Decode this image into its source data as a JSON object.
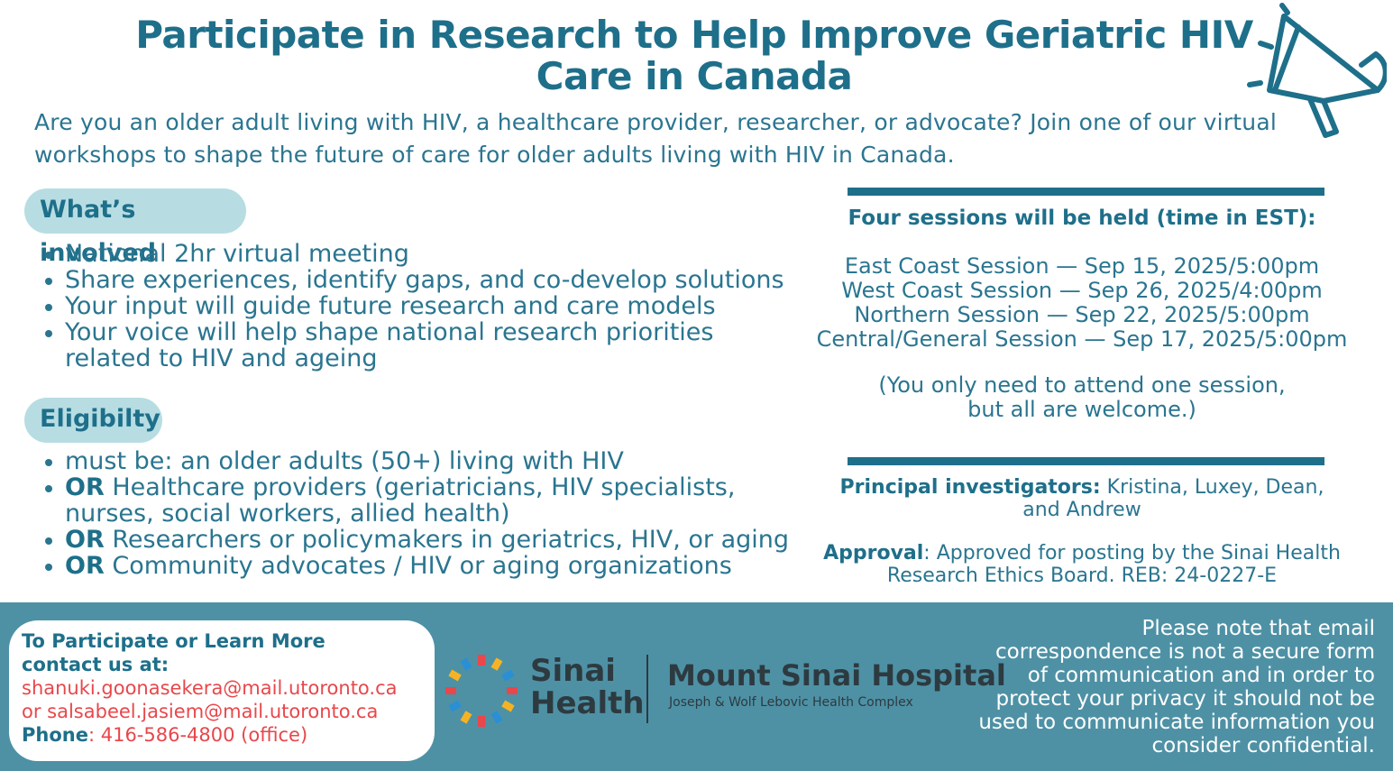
{
  "title": "Participate in Research to Help Improve Geriatric HIV Care in Canada",
  "intro": "Are you an older adult living with HIV, a healthcare provider, researcher, or advocate? Join one of our virtual workshops to shape the future of care for older adults living with HIV in Canada.",
  "involved": {
    "heading": "What’s involved",
    "items": [
      "National 2hr virtual meeting",
      "Share experiences, identify gaps, and co-develop solutions",
      "Your input will guide future research and care models",
      "Your voice will help shape national research priorities related to HIV and ageing"
    ]
  },
  "eligibility": {
    "heading": "Eligibilty",
    "first": "must be: an older adults (50+) living with HIV",
    "or_word": "OR",
    "items": [
      "Healthcare providers (geriatricians, HIV specialists, nurses, social workers, allied health)",
      "Researchers or policymakers in geriatrics, HIV, or aging",
      "Community advocates / HIV or aging organizations"
    ]
  },
  "sessions": {
    "heading": "Four sessions will be held (time in EST):",
    "list": [
      "East Coast Session — Sep 15, 2025/5:00pm",
      "West Coast Session — Sep 26, 2025/4:00pm",
      "Northern Session — Sep 22, 2025/5:00pm",
      "Central/General Session — Sep 17, 2025/5:00pm"
    ],
    "note_line1": "(You only need to attend one session,",
    "note_line2": "but all are welcome.)"
  },
  "investigators": {
    "label": "Principal investigators:",
    "value": " Kristina, Luxey, Dean, and Andrew"
  },
  "approval": {
    "label": "Approval",
    "value": ": Approved for posting by the Sinai Health Research Ethics Board. REB: 24-0227-E"
  },
  "contact": {
    "heading_line1": "To Participate or Learn More",
    "heading_line2": "contact us at:",
    "email1": "shanuki.goonasekera@mail.utoronto.ca",
    "email2": "or salsabeel.jasiem@mail.utoronto.ca",
    "phone_label": "Phone",
    "phone_value": ": 416-586-4800 (office)"
  },
  "logos": {
    "sinai_line1": "Sinai",
    "sinai_line2": "Health",
    "hospital": "Mount Sinai Hospital",
    "hospital_sub": "Joseph & Wolf Lebovic Health Complex"
  },
  "privacy_note": "Please note that email correspondence is not a secure form of communication and in order to protect your privacy it should not be used to communicate information you consider confidential.",
  "icons": {
    "announce": "megaphone-icon",
    "logo": "sinai-health-logo-icon"
  },
  "colors": {
    "primary": "#1e6f8a",
    "pill": "#b7dde3",
    "footer": "#4e91a5",
    "contact_red": "#e8474b"
  }
}
